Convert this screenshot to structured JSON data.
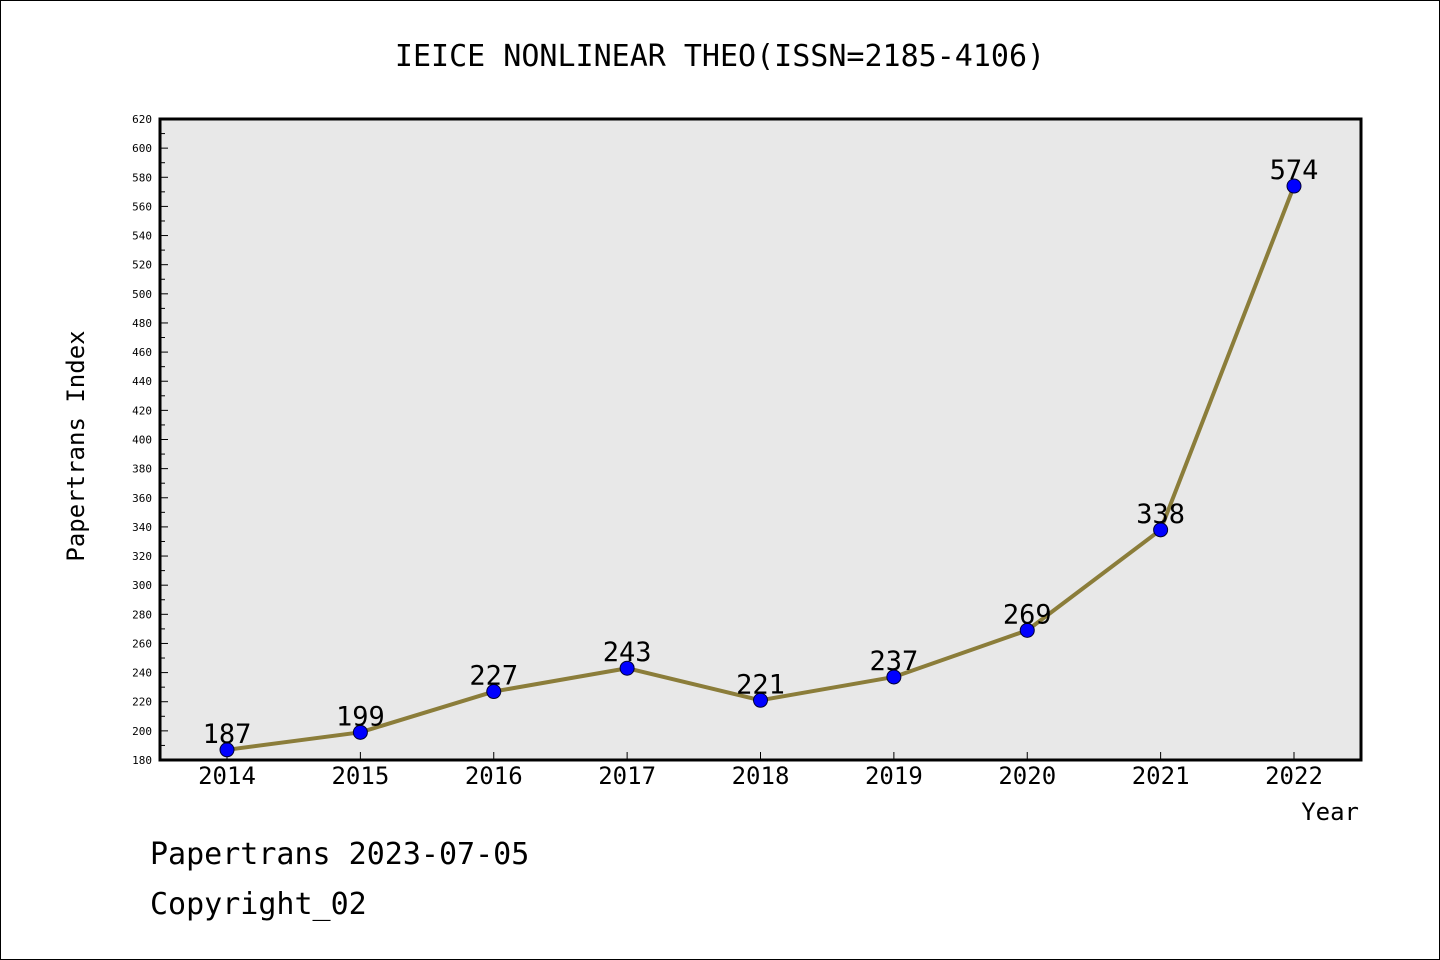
{
  "chart_data": {
    "type": "line",
    "title": "IEICE NONLINEAR THEO(ISSN=2185-4106)",
    "xlabel": "Year",
    "ylabel": "Papertrans Index",
    "categories": [
      "2014",
      "2015",
      "2016",
      "2017",
      "2018",
      "2019",
      "2020",
      "2021",
      "2022"
    ],
    "series": [
      {
        "values": [
          187,
          199,
          227,
          243,
          221,
          237,
          269,
          338,
          574
        ]
      }
    ],
    "data_labels": [
      "187",
      "199",
      "227",
      "243",
      "221",
      "237",
      "269",
      "338",
      "574"
    ],
    "ylim": [
      180,
      620
    ],
    "yticks": [
      "180",
      "200",
      "220",
      "240",
      "260",
      "280",
      "300",
      "320",
      "340",
      "360",
      "380",
      "400",
      "420",
      "440",
      "460",
      "480",
      "500",
      "520",
      "540",
      "560",
      "580",
      "600",
      "620"
    ],
    "grid": false,
    "colors": {
      "line": "#8b7d3a",
      "marker": "#0000ff",
      "plot_bg": "#e8e8e8"
    }
  },
  "footer": {
    "line1": "Papertrans 2023-07-05",
    "line2": "Copyright_02"
  }
}
